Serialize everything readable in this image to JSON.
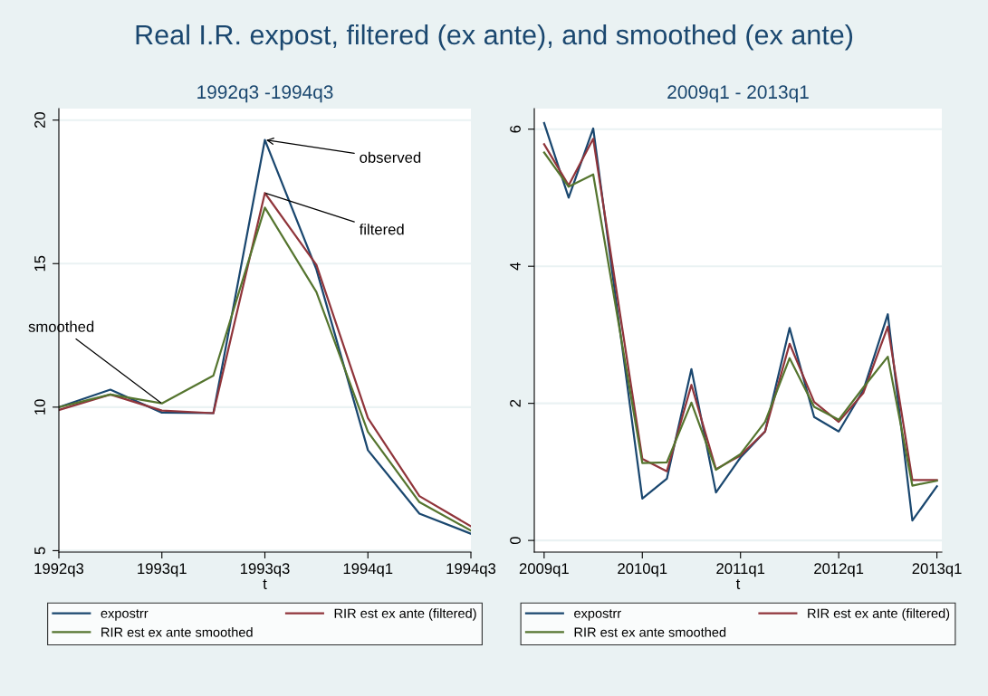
{
  "chart_data": [
    {
      "type": "line",
      "title": "Real I.R. expost, filtered (ex ante), and smoothed (ex ante)",
      "subtitle": "1992q3 -1994q3",
      "xlabel": "t",
      "categories": [
        "1992q3",
        null,
        "1993q1",
        null,
        "1993q3",
        null,
        "1994q1",
        null,
        "1994q3"
      ],
      "series": [
        {
          "name": "expostrr",
          "color": "#1a476f",
          "values": [
            10.0,
            10.61,
            9.81,
            9.79,
            19.31,
            14.8,
            8.5,
            6.29,
            5.59
          ]
        },
        {
          "name": "RIR est ex ante (filtered)",
          "color": "#90353b",
          "values": [
            9.9,
            10.44,
            9.88,
            9.79,
            17.46,
            14.96,
            9.62,
            6.9,
            5.85
          ]
        },
        {
          "name": "RIR est ex ante smoothed",
          "color": "#55752f",
          "values": [
            10.0,
            10.44,
            10.13,
            11.1,
            16.95,
            14.01,
            9.14,
            6.69,
            5.7
          ]
        }
      ],
      "ylim": [
        4.95,
        20.4
      ],
      "yticks": [
        5,
        10,
        15,
        20
      ],
      "grid": "y",
      "legend": "bottom",
      "annotations": [
        {
          "text": "observed",
          "x": "1993q3",
          "y": 19.31
        },
        {
          "text": "filtered",
          "x": "1993q3",
          "y": 17.46
        },
        {
          "text": "smoothed",
          "x": "1993q1",
          "y": 10.13
        }
      ]
    },
    {
      "type": "line",
      "subtitle": "2009q1 - 2013q1",
      "xlabel": "t",
      "categories": [
        "2009q1",
        null,
        null,
        null,
        "2010q1",
        null,
        null,
        null,
        "2011q1",
        null,
        null,
        null,
        "2012q1",
        null,
        null,
        null,
        "2013q1"
      ],
      "series": [
        {
          "name": "expostrr",
          "color": "#1a476f",
          "values": [
            6.09,
            5.0,
            6.01,
            3.31,
            0.61,
            0.9,
            2.5,
            0.7,
            1.21,
            1.59,
            3.1,
            1.8,
            1.59,
            2.19,
            3.3,
            0.29,
            0.79
          ]
        },
        {
          "name": "RIR est ex ante (filtered)",
          "color": "#90353b",
          "values": [
            5.78,
            5.18,
            5.86,
            3.52,
            1.19,
            1.01,
            2.27,
            1.04,
            1.24,
            1.59,
            2.87,
            2.02,
            1.73,
            2.15,
            3.12,
            0.88,
            0.88
          ]
        },
        {
          "name": "RIR est ex ante smoothed",
          "color": "#55752f",
          "values": [
            5.66,
            5.16,
            5.34,
            3.24,
            1.13,
            1.14,
            2.01,
            1.03,
            1.26,
            1.73,
            2.66,
            1.95,
            1.76,
            2.23,
            2.68,
            0.8,
            0.87
          ]
        }
      ],
      "ylim": [
        -0.17,
        6.3
      ],
      "yticks": [
        0,
        2,
        4,
        6
      ],
      "grid": "y",
      "legend": "bottom"
    }
  ]
}
